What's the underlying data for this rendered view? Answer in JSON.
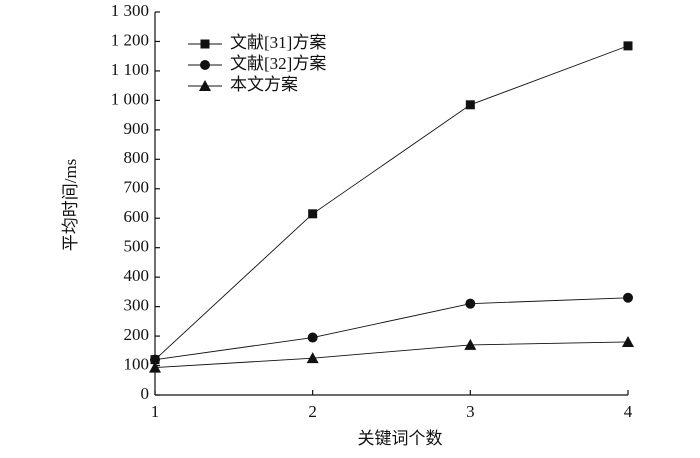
{
  "chart_data": {
    "type": "line",
    "x_label": "关键词个数",
    "y_label": "平均时间/ms",
    "x": [
      1,
      2,
      3,
      4
    ],
    "series": [
      {
        "name": "文献[31]方案",
        "color": "#111111",
        "marker": "square",
        "values": [
          120,
          615,
          985,
          1185
        ]
      },
      {
        "name": "文献[32]方案",
        "color": "#111111",
        "marker": "circle",
        "values": [
          120,
          195,
          310,
          330
        ]
      },
      {
        "name": "本文方案",
        "color": "#111111",
        "marker": "triangle",
        "values": [
          93,
          125,
          170,
          180
        ]
      }
    ],
    "xlim": [
      1,
      4
    ],
    "xticks": [
      1,
      2,
      3,
      4
    ],
    "ylim": [
      0,
      1300
    ],
    "yticks": [
      0,
      100,
      200,
      300,
      400,
      500,
      600,
      700,
      800,
      900,
      {
        "value": 1000,
        "label": "1 000"
      },
      {
        "value": 1100,
        "label": "1 100"
      },
      {
        "value": 1200,
        "label": "1 200"
      },
      {
        "value": 1300,
        "label": "1 300"
      }
    ],
    "legend": "upper-left",
    "grid": false
  }
}
